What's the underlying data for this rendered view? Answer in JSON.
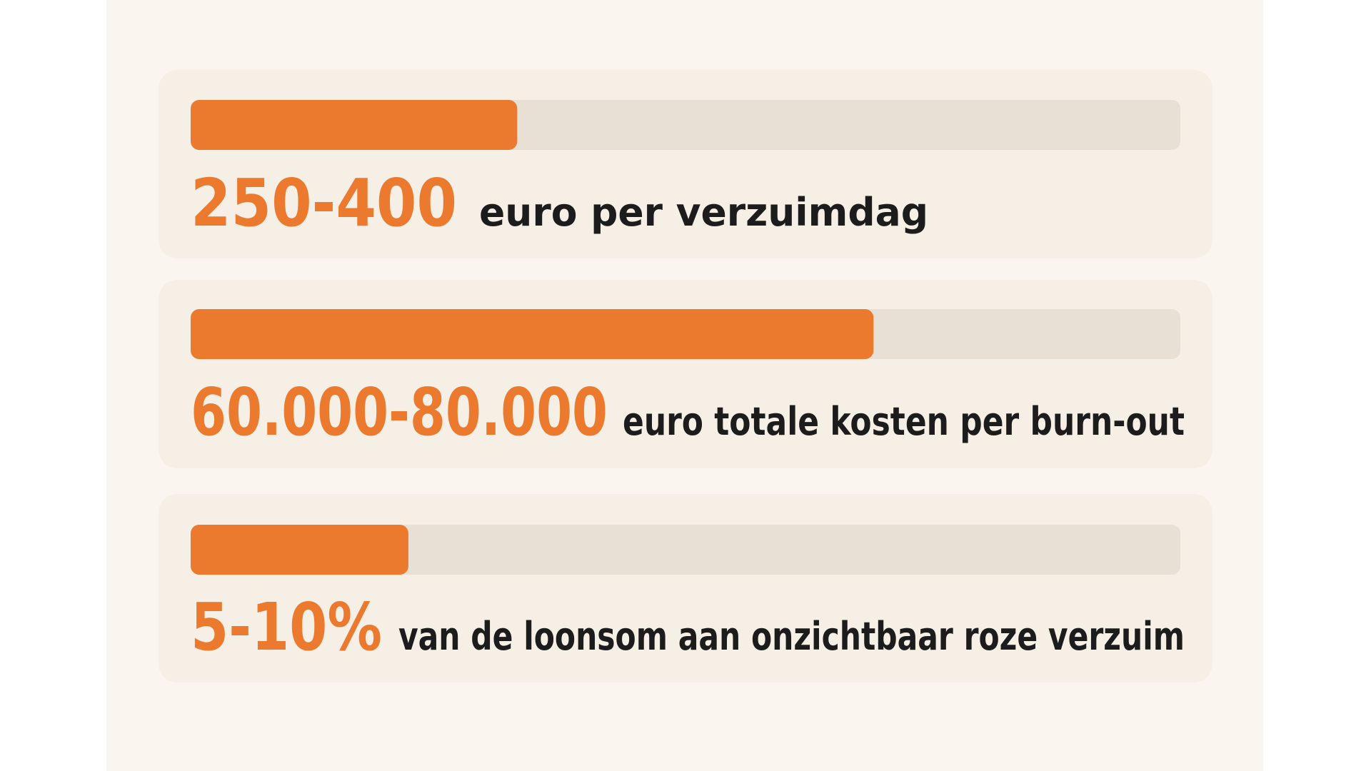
{
  "items": [
    {
      "figure": "250-400",
      "text": "euro per verzuimdag",
      "fill": 33
    },
    {
      "figure": "60.000-80.000",
      "text": "euro totale kosten per burn-out",
      "fill": 69
    },
    {
      "figure": "5-10%",
      "text": "van de loonsom aan onzichtbaar roze verzuim",
      "fill": 22
    }
  ]
}
